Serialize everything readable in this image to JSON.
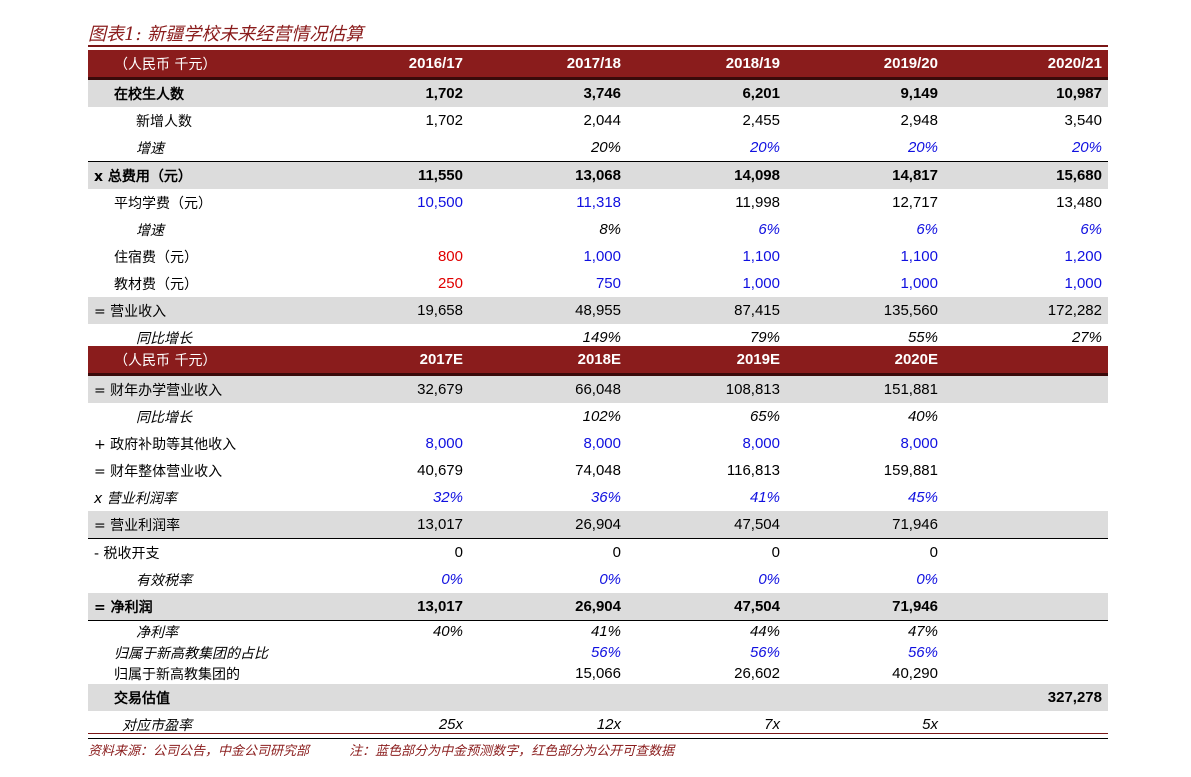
{
  "title": "图表1: 新疆学校未来经营情况估算",
  "colors": {
    "brand": "#8a1c1c",
    "shade": "#dcdcdc",
    "blue_input": "#1010e0",
    "red_public": "#e00000"
  },
  "table1": {
    "header": [
      "（人民币  千元）",
      "2016/17",
      "2017/18",
      "2018/19",
      "2019/20",
      "2020/21"
    ],
    "rows": [
      {
        "label": "在校生人数",
        "values": [
          "1,702",
          "3,746",
          "6,201",
          "9,149",
          "10,987"
        ],
        "style": "shade bold",
        "indent": 26
      },
      {
        "label": "新增人数",
        "values": [
          "1,702",
          "2,044",
          "2,455",
          "2,948",
          "3,540"
        ],
        "indent": 48
      },
      {
        "label": "增速",
        "values": [
          "",
          "20%",
          "20%",
          "20%",
          "20%"
        ],
        "indent": 48,
        "italic": true,
        "colors": [
          "",
          "",
          "blue",
          "blue",
          "blue"
        ],
        "sep": true
      },
      {
        "label": "x  总费用（元）",
        "values": [
          "11,550",
          "13,068",
          "14,098",
          "14,817",
          "15,680"
        ],
        "style": "shade bold",
        "indent": 6
      },
      {
        "label": "平均学费（元）",
        "values": [
          "10,500",
          "11,318",
          "11,998",
          "12,717",
          "13,480"
        ],
        "indent": 26,
        "colors": [
          "blue",
          "blue",
          "",
          "",
          ""
        ]
      },
      {
        "label": "增速",
        "values": [
          "",
          "8%",
          "6%",
          "6%",
          "6%"
        ],
        "indent": 48,
        "italic": true,
        "colors": [
          "",
          "",
          "blue",
          "blue",
          "blue"
        ]
      },
      {
        "label": "住宿费（元）",
        "values": [
          "800",
          "1,000",
          "1,100",
          "1,100",
          "1,200"
        ],
        "indent": 26,
        "colors": [
          "red",
          "blue",
          "blue",
          "blue",
          "blue"
        ]
      },
      {
        "label": "教材费（元）",
        "values": [
          "250",
          "750",
          "1,000",
          "1,000",
          "1,000"
        ],
        "indent": 26,
        "colors": [
          "red",
          "blue",
          "blue",
          "blue",
          "blue"
        ]
      },
      {
        "label": "=  营业收入",
        "values": [
          "19,658",
          "48,955",
          "87,415",
          "135,560",
          "172,282"
        ],
        "style": "shade",
        "indent": 6
      },
      {
        "label": "同比增长",
        "values": [
          "",
          "149%",
          "79%",
          "55%",
          "27%"
        ],
        "indent": 48,
        "italic": true,
        "sep": true
      }
    ]
  },
  "table2": {
    "header": [
      "（人民币  千元）",
      "2017E",
      "2018E",
      "2019E",
      "2020E",
      ""
    ],
    "rows": [
      {
        "label": "=  财年办学营业收入",
        "values": [
          "32,679",
          "66,048",
          "108,813",
          "151,881",
          ""
        ],
        "style": "shade",
        "indent": 6
      },
      {
        "label": "同比增长",
        "values": [
          "",
          "102%",
          "65%",
          "40%",
          ""
        ],
        "indent": 48,
        "italic": true
      },
      {
        "label": "+  政府补助等其他收入",
        "values": [
          "8,000",
          "8,000",
          "8,000",
          "8,000",
          ""
        ],
        "indent": 6,
        "colors": [
          "blue",
          "blue",
          "blue",
          "blue",
          ""
        ]
      },
      {
        "label": "=  财年整体营业收入",
        "values": [
          "40,679",
          "74,048",
          "116,813",
          "159,881",
          ""
        ],
        "indent": 6
      },
      {
        "label": "x  营业利润率",
        "values": [
          "32%",
          "36%",
          "41%",
          "45%",
          ""
        ],
        "indent": 6,
        "italic": true,
        "colors": [
          "blue",
          "blue",
          "blue",
          "blue",
          ""
        ]
      },
      {
        "label": "=  营业利润率",
        "values": [
          "13,017",
          "26,904",
          "47,504",
          "71,946",
          ""
        ],
        "style": "shade",
        "indent": 6,
        "sep": true
      },
      {
        "label": "-  税收开支",
        "values": [
          "0",
          "0",
          "0",
          "0",
          ""
        ],
        "indent": 6
      },
      {
        "label": "有效税率",
        "values": [
          "0%",
          "0%",
          "0%",
          "0%",
          ""
        ],
        "indent": 48,
        "italic": true,
        "colors": [
          "blue",
          "blue",
          "blue",
          "blue",
          ""
        ]
      },
      {
        "label": "=  净利润",
        "values": [
          "13,017",
          "26,904",
          "47,504",
          "71,946",
          ""
        ],
        "style": "shade bold",
        "indent": 6,
        "sep": true
      },
      {
        "label": "净利率",
        "values": [
          "40%",
          "41%",
          "44%",
          "47%",
          ""
        ],
        "indent": 48,
        "italic": true,
        "short": true
      },
      {
        "label": "归属于新高教集团的占比",
        "values": [
          "",
          "56%",
          "56%",
          "56%",
          ""
        ],
        "indent": 26,
        "italic": true,
        "short": true,
        "colors": [
          "",
          "blue",
          "blue",
          "blue",
          ""
        ]
      },
      {
        "label": "归属于新高教集团的",
        "values": [
          "",
          "15,066",
          "26,602",
          "40,290",
          ""
        ],
        "indent": 26,
        "short": true
      },
      {
        "label": "交易估值",
        "values": [
          "",
          "",
          "",
          "",
          "327,278"
        ],
        "style": "shade bold",
        "indent": 26
      },
      {
        "label": "对应市盈率",
        "values": [
          "25x",
          "12x",
          "7x",
          "5x",
          ""
        ],
        "indent": 34,
        "italic": true,
        "sep": true
      }
    ]
  },
  "footer": {
    "source": "资料来源：公司公告，中金公司研究部",
    "note": "注：蓝色部分为中金预测数字，红色部分为公开可查数据"
  }
}
